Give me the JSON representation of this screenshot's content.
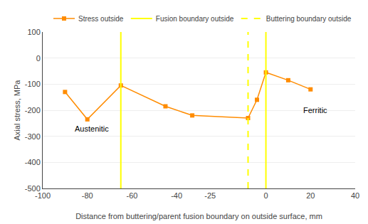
{
  "chart_data": {
    "type": "line",
    "xlabel": "Distance from buttering/parent fusion boundary on outside surface, mm",
    "ylabel": "Axial stress, MPa",
    "x": [
      -90,
      -80,
      -65,
      -45,
      -33,
      -8,
      -4,
      0,
      10,
      20
    ],
    "series": [
      {
        "name": "Stress outside",
        "type": "line",
        "color": "#FF8C00",
        "marker": "square",
        "line_style": "solid",
        "values": [
          -130,
          -235,
          -105,
          -185,
          -220,
          -230,
          -160,
          -55,
          -85,
          -120
        ]
      },
      {
        "name": "Fusion boundary outside",
        "type": "vline",
        "color": "#FFFF00",
        "line_style": "solid",
        "x": [
          -65,
          0
        ]
      },
      {
        "name": "Buttering boundary outside",
        "type": "vline",
        "color": "#FFFF00",
        "line_style": "dashed",
        "x": [
          -8
        ]
      }
    ],
    "annotations": [
      {
        "text": "Austenitic",
        "x": -78,
        "y": -270
      },
      {
        "text": "Ferritic",
        "x": 22,
        "y": -200
      }
    ],
    "xlim": [
      -100,
      40
    ],
    "ylim": [
      -500,
      100
    ],
    "xticks": [
      -100,
      -80,
      -60,
      -40,
      -25,
      0,
      20,
      40
    ],
    "yticks": [
      100,
      0,
      -100,
      -200,
      -300,
      -400,
      -500
    ],
    "grid": "y",
    "legend": "upper right"
  }
}
